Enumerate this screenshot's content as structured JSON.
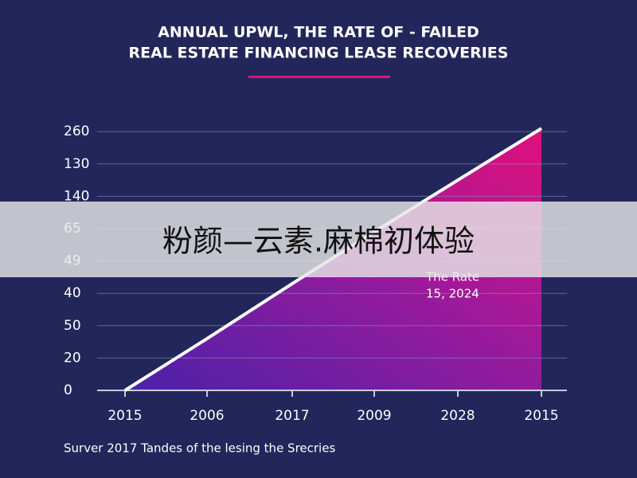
{
  "chart_data": {
    "type": "area",
    "title": [
      "ANNUAL UPWL, THE RATE OF - FAILED",
      "REAL ESTATE FINANCING LEASE RECOVERIES"
    ],
    "categories": [
      "2015",
      "2006",
      "2017",
      "2009",
      "2028",
      "2015"
    ],
    "series": [
      {
        "values": [
          0,
          1.6,
          3.3,
          4.9,
          6.5,
          8.1
        ],
        "color": "#ffffff"
      }
    ],
    "ylim": [
      0,
      9
    ],
    "yticks": [
      0,
      {
        "value": 1,
        "label": "20"
      },
      {
        "value": 2,
        "label": "50"
      },
      {
        "value": 3,
        "label": "40"
      },
      {
        "value": 4,
        "label": "49"
      },
      {
        "value": 5,
        "label": "65"
      },
      {
        "value": 6,
        "label": "140"
      },
      {
        "value": 7,
        "label": "130"
      },
      {
        "value": 8,
        "label": "260"
      }
    ],
    "grid": true,
    "annotation": [
      "The Rate",
      "15, 2024"
    ],
    "footer": "Surver 2017 Tandes of the lesing the Srecries",
    "banner": "粉颜—云素.麻棉初体验"
  }
}
